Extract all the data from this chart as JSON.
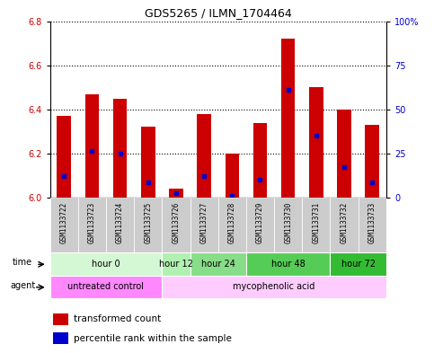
{
  "title": "GDS5265 / ILMN_1704464",
  "samples": [
    "GSM1133722",
    "GSM1133723",
    "GSM1133724",
    "GSM1133725",
    "GSM1133726",
    "GSM1133727",
    "GSM1133728",
    "GSM1133729",
    "GSM1133730",
    "GSM1133731",
    "GSM1133732",
    "GSM1133733"
  ],
  "bar_tops": [
    6.37,
    6.47,
    6.45,
    6.32,
    6.04,
    6.38,
    6.2,
    6.34,
    6.72,
    6.5,
    6.4,
    6.33
  ],
  "bar_base": 6.0,
  "blue_vals": [
    6.1,
    6.21,
    6.2,
    6.07,
    6.02,
    6.1,
    6.01,
    6.08,
    6.49,
    6.28,
    6.14,
    6.07
  ],
  "ylim": [
    6.0,
    6.8
  ],
  "yticks_left": [
    6.0,
    6.2,
    6.4,
    6.6,
    6.8
  ],
  "yticks_right": [
    0,
    25,
    50,
    75,
    100
  ],
  "bar_color": "#cc0000",
  "blue_color": "#0000cc",
  "time_groups": [
    {
      "label": "hour 0",
      "start": 0,
      "end": 4,
      "color": "#ccffcc"
    },
    {
      "label": "hour 12",
      "start": 4,
      "end": 5,
      "color": "#aaffaa"
    },
    {
      "label": "hour 24",
      "start": 5,
      "end": 7,
      "color": "#88ee88"
    },
    {
      "label": "hour 48",
      "start": 7,
      "end": 10,
      "color": "#55dd55"
    },
    {
      "label": "hour 72",
      "start": 10,
      "end": 12,
      "color": "#33cc33"
    }
  ],
  "agent_groups": [
    {
      "label": "untreated control",
      "start": 0,
      "end": 4,
      "color": "#ff88ff"
    },
    {
      "label": "mycophenolic acid",
      "start": 4,
      "end": 12,
      "color": "#ffccff"
    }
  ],
  "right_axis_color": "#0000cc",
  "left_axis_color": "#cc0000",
  "time_colors": {
    "hour 0": "#d4f7d4",
    "hour 12": "#b0f0b0",
    "hour 24": "#88dd88",
    "hour 48": "#55cc55",
    "hour 72": "#33bb33"
  }
}
